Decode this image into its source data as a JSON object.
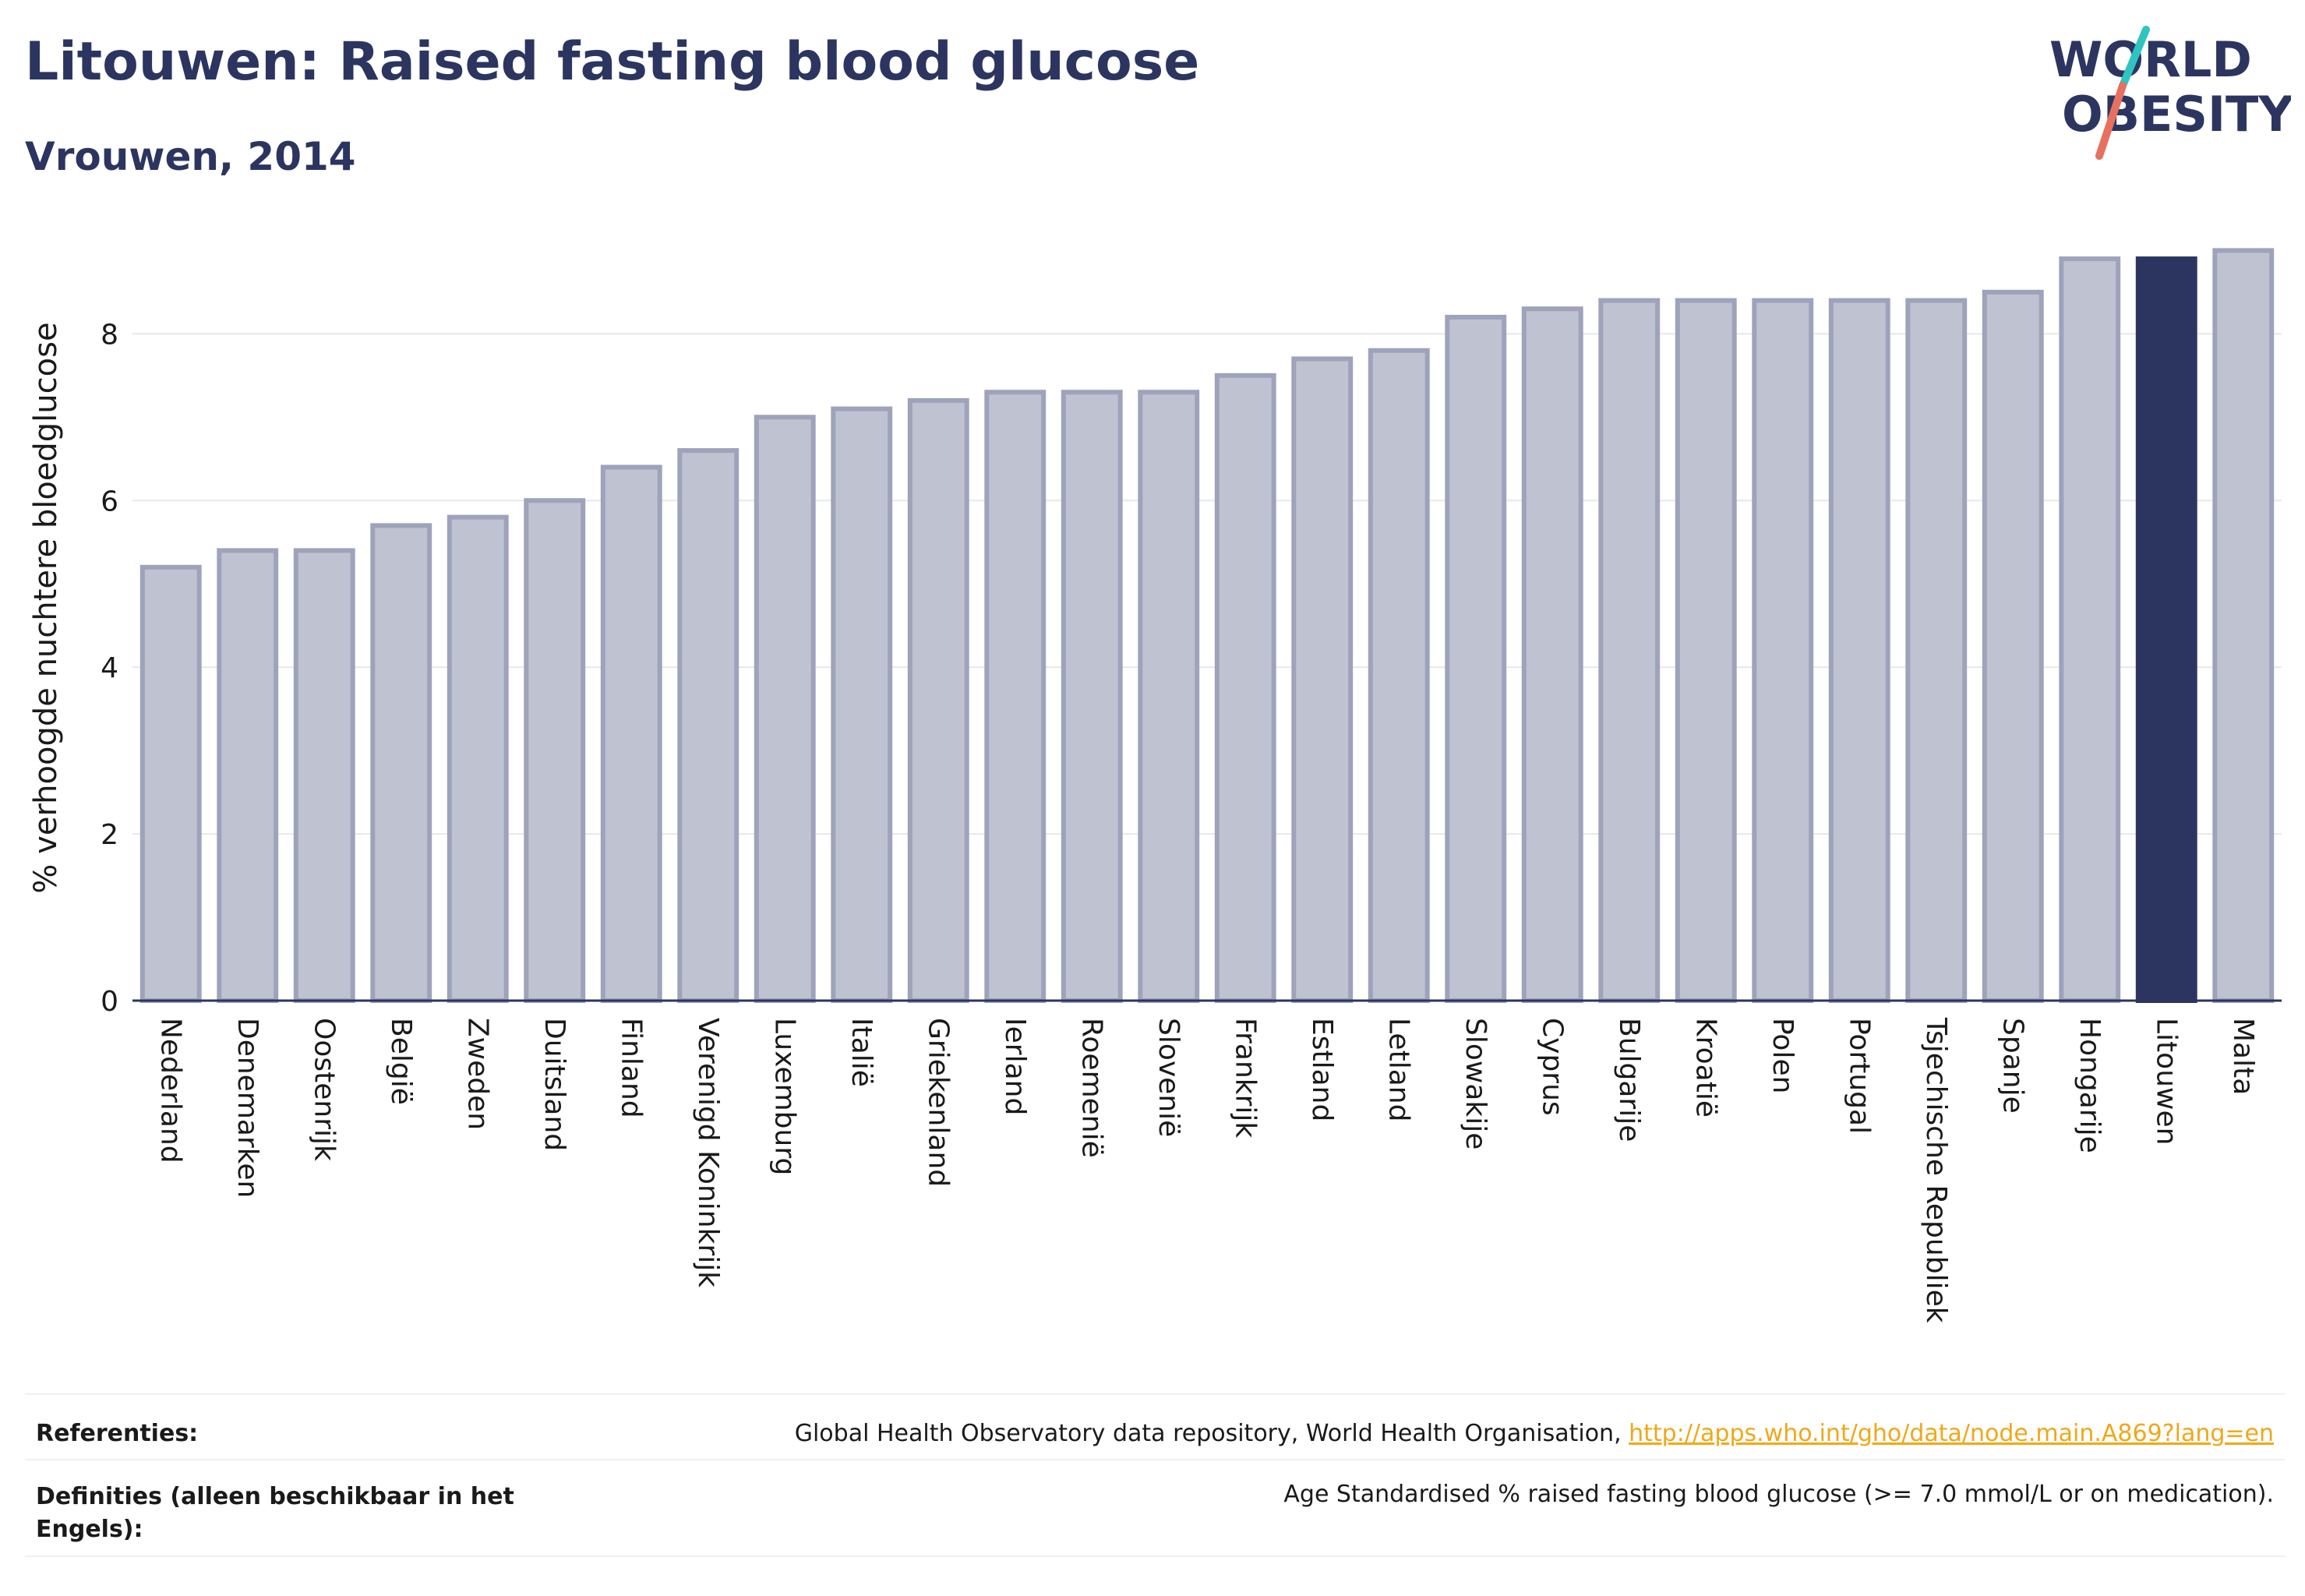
{
  "header": {
    "title": "Litouwen: Raised fasting blood glucose",
    "subtitle": "Vrouwen, 2014"
  },
  "logo": {
    "line1": "WORLD",
    "line2": "OBESITY",
    "accent_teal": "#2ec4c1",
    "accent_coral": "#e8705f"
  },
  "colors": {
    "bar_default": "#bfc2d0",
    "bar_border": "#9ea3bb",
    "bar_highlight": "#2b3560",
    "text_dark": "#2b3560",
    "link": "#f0a818"
  },
  "chart_data": {
    "type": "bar",
    "title": "Litouwen: Raised fasting blood glucose",
    "subtitle": "Vrouwen, 2014",
    "xlabel": "",
    "ylabel": "% verhoogde nuchtere bloedglucose",
    "ylim": [
      0,
      9.2
    ],
    "yticks": [
      0,
      2,
      4,
      6,
      8
    ],
    "grid": true,
    "highlight": "Litouwen",
    "categories": [
      "Nederland",
      "Denemarken",
      "Oostenrijk",
      "België",
      "Zweden",
      "Duitsland",
      "Finland",
      "Verenigd Koninkrijk",
      "Luxemburg",
      "Italië",
      "Griekenland",
      "Ierland",
      "Roemenië",
      "Slovenië",
      "Frankrijk",
      "Estland",
      "Letland",
      "Slowakije",
      "Cyprus",
      "Bulgarije",
      "Kroatië",
      "Polen",
      "Portugal",
      "Tsjechische Republiek",
      "Spanje",
      "Hongarije",
      "Litouwen",
      "Malta"
    ],
    "values": [
      5.2,
      5.4,
      5.4,
      5.7,
      5.8,
      6.0,
      6.4,
      6.6,
      7.0,
      7.1,
      7.2,
      7.3,
      7.3,
      7.3,
      7.5,
      7.7,
      7.8,
      8.2,
      8.3,
      8.4,
      8.4,
      8.4,
      8.4,
      8.4,
      8.5,
      8.9,
      8.9,
      9.0
    ]
  },
  "footer": {
    "ref_label": "Referenties:",
    "ref_text": "Global Health Observatory data repository, World Health Organisation, ",
    "ref_link": "http://apps.who.int/gho/data/node.main.A869?lang=en",
    "def_label": "Definities (alleen beschikbaar in het Engels):",
    "def_text": "Age Standardised % raised fasting blood glucose (>= 7.0 mmol/L or on medication)."
  }
}
